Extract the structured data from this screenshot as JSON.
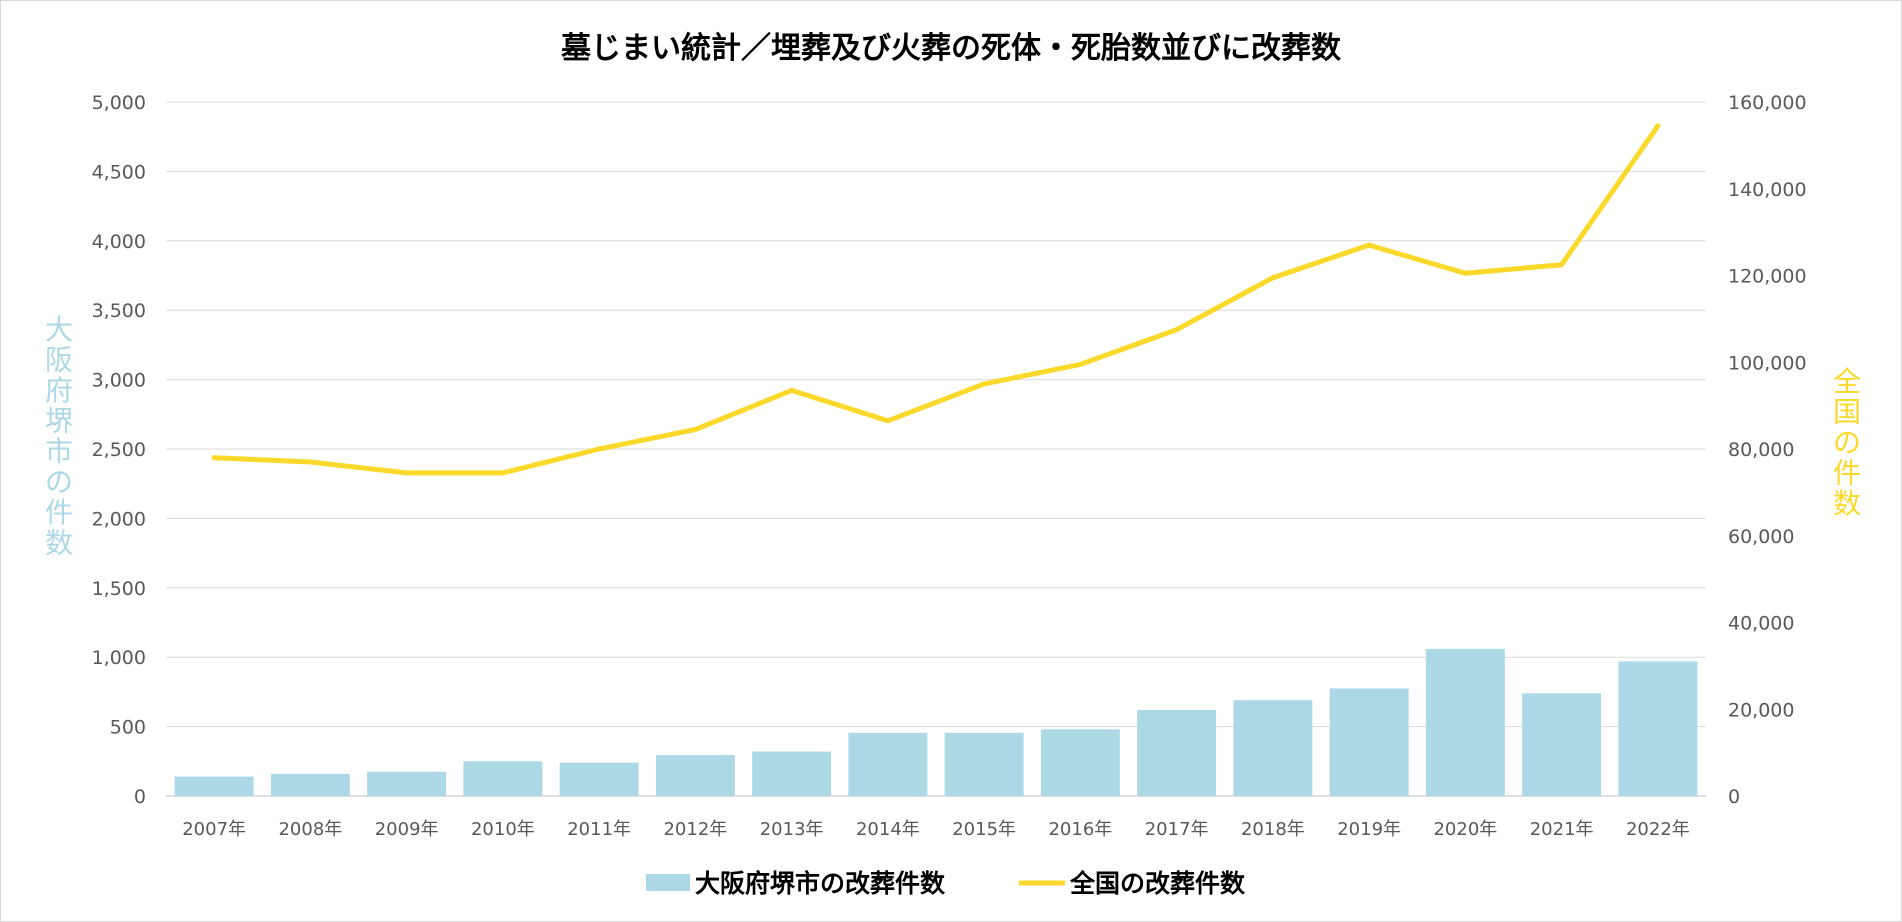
{
  "chart_data": {
    "type": "bar+line",
    "title": "墓じまい統計／埋葬及び火葬の死体・死胎数並びに改葬数",
    "categories": [
      "2007年",
      "2008年",
      "2009年",
      "2010年",
      "2011年",
      "2012年",
      "2013年",
      "2014年",
      "2015年",
      "2016年",
      "2017年",
      "2018年",
      "2019年",
      "2020年",
      "2021年",
      "2022年"
    ],
    "series": [
      {
        "name": "大阪府堺市の改葬件数",
        "type": "bar",
        "axis": "left",
        "color": "#add8e6",
        "values": [
          140,
          160,
          175,
          250,
          240,
          295,
          320,
          455,
          455,
          480,
          620,
          690,
          775,
          1060,
          740,
          970
        ]
      },
      {
        "name": "全国の改葬件数",
        "type": "line",
        "axis": "right",
        "color": "#fbd92b",
        "values": [
          78000,
          77000,
          74500,
          74500,
          80000,
          84500,
          93500,
          86500,
          95000,
          99500,
          107500,
          119500,
          127000,
          120500,
          122500,
          154500
        ]
      }
    ],
    "y_left": {
      "label": "大阪府堺市の件数",
      "label_color": "#add8e6",
      "range": [
        0,
        5000
      ],
      "ticks": [
        "0",
        "500",
        "1,000",
        "1,500",
        "2,000",
        "2,500",
        "3,000",
        "3,500",
        "4,000",
        "4,500",
        "5,000"
      ]
    },
    "y_right": {
      "label": "全国の件数",
      "label_color": "#fbd92b",
      "range": [
        0,
        160000
      ],
      "ticks": [
        "0",
        "20,000",
        "40,000",
        "60,000",
        "80,000",
        "100,000",
        "120,000",
        "140,000",
        "160,000"
      ]
    },
    "grid": true,
    "legend_position": "bottom"
  }
}
